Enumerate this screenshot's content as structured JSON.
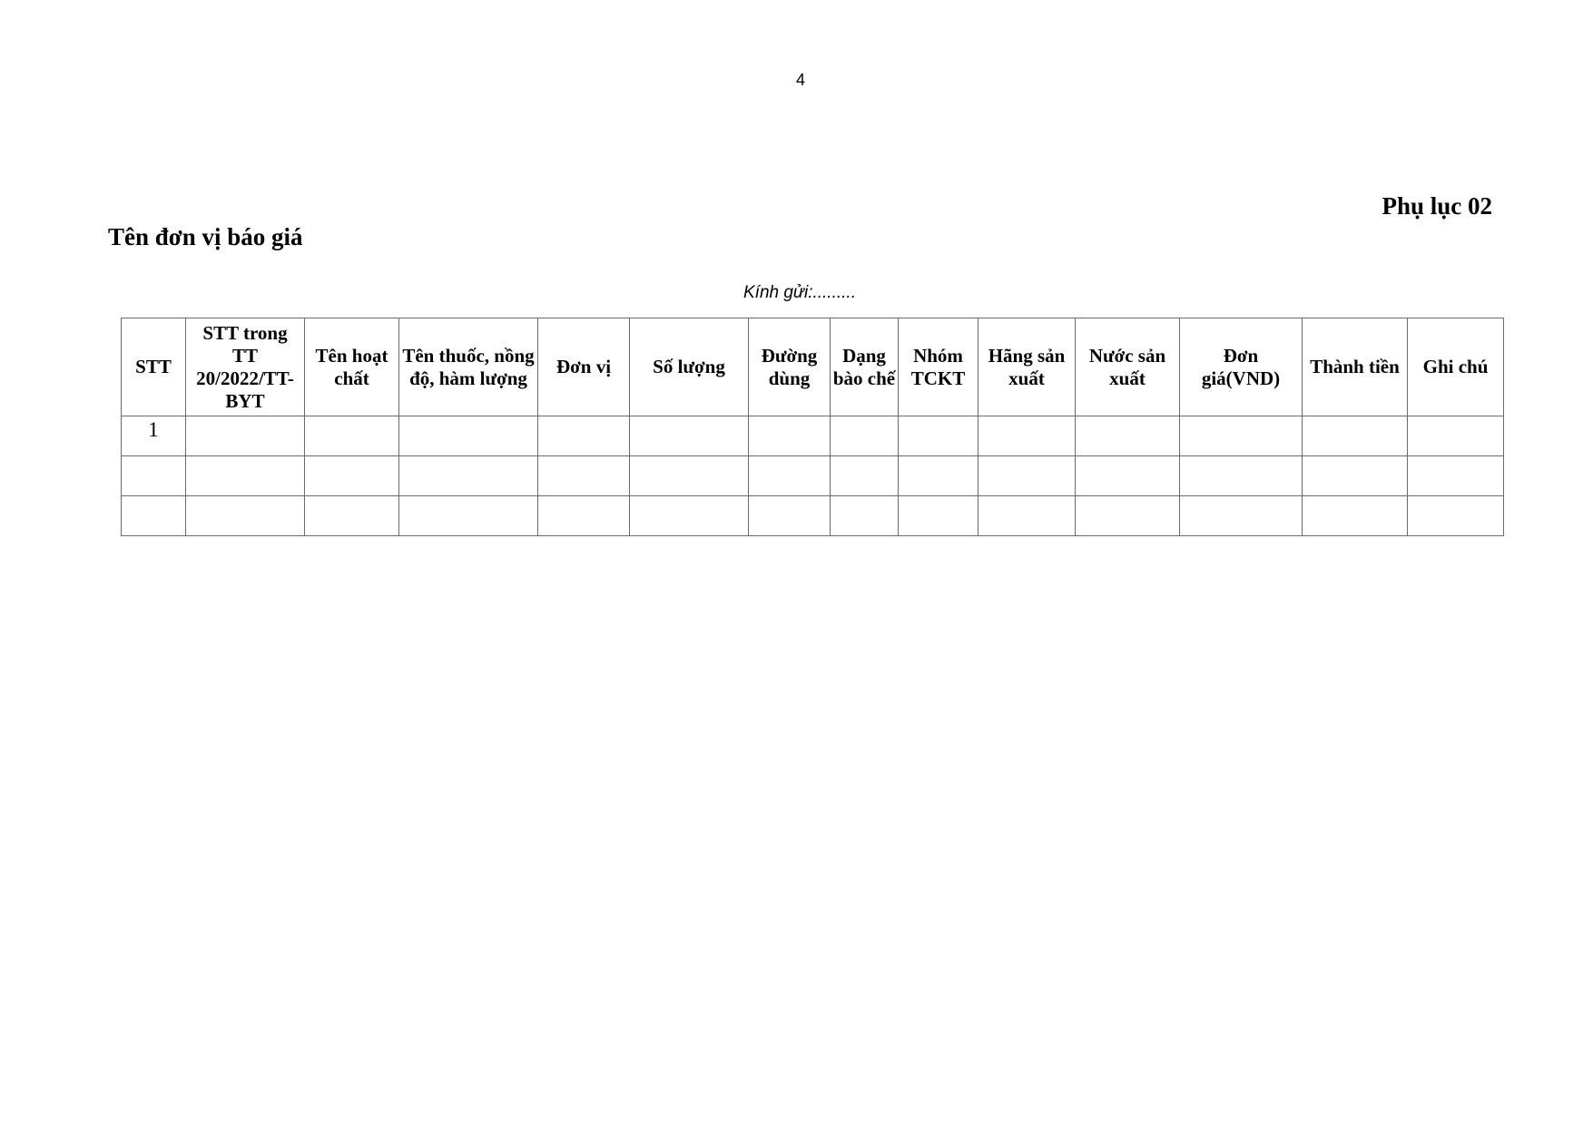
{
  "page_number": "4",
  "appendix_title": "Phụ lục 02",
  "unit_title": "Tên đơn vị báo giá",
  "recipient": "Kính gửi:.........",
  "table": {
    "headers": [
      "STT",
      "STT trong TT 20/2022/TT-BYT",
      "Tên hoạt chất",
      "Tên thuốc, nồng độ, hàm lượng",
      "Đơn vị",
      "Số lượng",
      "Đường dùng",
      "Dạng bào chế",
      "Nhóm TCKT",
      "Hãng sản xuất",
      "Nước sản xuất",
      "Đơn giá(VND)",
      "Thành tiền",
      "Ghi chú"
    ],
    "rows": [
      [
        "1",
        "",
        "",
        "",
        "",
        "",
        "",
        "",
        "",
        "",
        "",
        "",
        "",
        ""
      ],
      [
        "",
        "",
        "",
        "",
        "",
        "",
        "",
        "",
        "",
        "",
        "",
        "",
        "",
        ""
      ],
      [
        "",
        "",
        "",
        "",
        "",
        "",
        "",
        "",
        "",
        "",
        "",
        "",
        "",
        ""
      ]
    ]
  }
}
